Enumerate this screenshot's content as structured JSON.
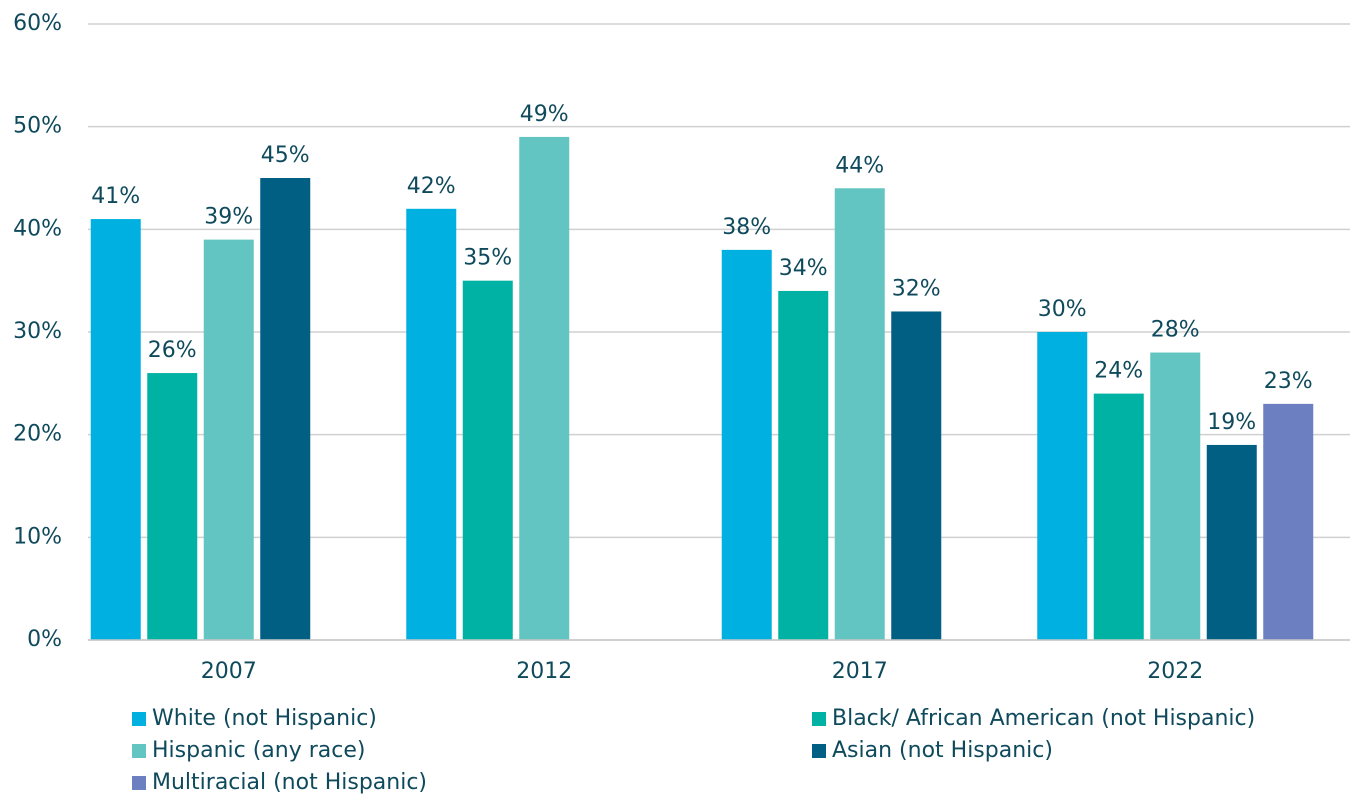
{
  "chart_data": {
    "type": "bar",
    "categories": [
      "2007",
      "2012",
      "2017",
      "2022"
    ],
    "series": [
      {
        "name": "White (not Hispanic)",
        "color": "#00b0e0",
        "values": [
          41,
          42,
          38,
          30
        ],
        "value_labels": [
          "41%",
          "42%",
          "38%",
          "30%"
        ]
      },
      {
        "name": "Black/ African American (not Hispanic)",
        "color": "#00b2a3",
        "values": [
          26,
          35,
          34,
          24
        ],
        "value_labels": [
          "26%",
          "35%",
          "34%",
          "24%"
        ]
      },
      {
        "name": "Hispanic (any race)",
        "color": "#63c5c1",
        "values": [
          39,
          49,
          44,
          28
        ],
        "value_labels": [
          "39%",
          "49%",
          "44%",
          "28%"
        ]
      },
      {
        "name": "Asian (not Hispanic)",
        "color": "#005f83",
        "values": [
          45,
          null,
          32,
          19
        ],
        "value_labels": [
          "45%",
          null,
          "32%",
          "19%"
        ]
      },
      {
        "name": "Multiracial (not Hispanic)",
        "color": "#6b7fc1",
        "values": [
          null,
          null,
          null,
          23
        ],
        "value_labels": [
          null,
          null,
          null,
          "23%"
        ]
      }
    ],
    "ylim": [
      0,
      60
    ],
    "yticks": [
      {
        "value": 0,
        "label": "0%"
      },
      {
        "value": 10,
        "label": "10%"
      },
      {
        "value": 20,
        "label": "20%"
      },
      {
        "value": 30,
        "label": "30%"
      },
      {
        "value": 40,
        "label": "40%"
      },
      {
        "value": 50,
        "label": "50%"
      },
      {
        "value": 60,
        "label": "60%"
      }
    ],
    "grid": true
  }
}
